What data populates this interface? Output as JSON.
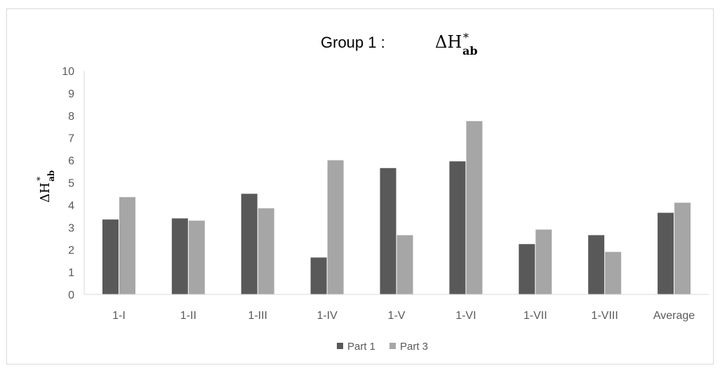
{
  "chart_data": {
    "type": "bar",
    "title": {
      "prefix": "Group 1 :",
      "symbol": "ΔH",
      "superscript": "*",
      "subscript": "ab"
    },
    "ylabel": {
      "symbol": "ΔH",
      "superscript": "*",
      "subscript": "ab"
    },
    "xlabel": "",
    "categories": [
      "1-I",
      "1-II",
      "1-III",
      "1-IV",
      "1-V",
      "1-VI",
      "1-VII",
      "1-VIII",
      "Average"
    ],
    "series": [
      {
        "name": "Part 1",
        "values": [
          3.35,
          3.4,
          4.5,
          1.65,
          5.65,
          5.95,
          2.25,
          2.65,
          3.65
        ],
        "color": "#595959"
      },
      {
        "name": "Part 3",
        "values": [
          4.35,
          3.3,
          3.85,
          6.0,
          2.65,
          7.75,
          2.9,
          1.9,
          4.1
        ],
        "color": "#a6a6a6"
      }
    ],
    "ylim": [
      0,
      10
    ],
    "yticks": [
      0,
      1,
      2,
      3,
      4,
      5,
      6,
      7,
      8,
      9,
      10
    ],
    "grid": false,
    "legend_position": "bottom"
  }
}
